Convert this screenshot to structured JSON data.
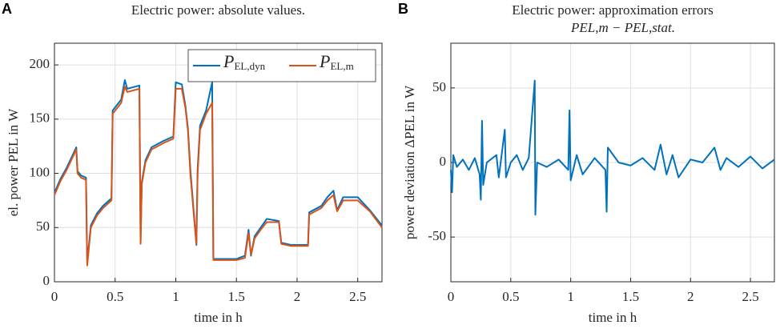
{
  "chart_data": [
    {
      "type": "line",
      "panel_label": "A",
      "title": "Electric power: absolute values.",
      "xlabel": "time in h",
      "ylabel": "el. power PEL in W",
      "xlim": [
        0,
        2.7
      ],
      "ylim": [
        0,
        220
      ],
      "xticks": [
        0,
        0.5,
        1,
        1.5,
        2,
        2.5
      ],
      "yticks": [
        0,
        50,
        100,
        150,
        200
      ],
      "grid": true,
      "legend": "upper right",
      "x": [
        0,
        0.05,
        0.1,
        0.18,
        0.19,
        0.22,
        0.26,
        0.27,
        0.3,
        0.35,
        0.4,
        0.47,
        0.48,
        0.55,
        0.58,
        0.6,
        0.7,
        0.71,
        0.72,
        0.75,
        0.8,
        0.9,
        0.98,
        1.0,
        1.05,
        1.08,
        1.1,
        1.12,
        1.15,
        1.17,
        1.18,
        1.2,
        1.25,
        1.3,
        1.31,
        1.5,
        1.57,
        1.6,
        1.62,
        1.65,
        1.7,
        1.75,
        1.85,
        1.87,
        1.95,
        2.09,
        2.1,
        2.2,
        2.25,
        2.3,
        2.33,
        2.38,
        2.5,
        2.6,
        2.7
      ],
      "series": [
        {
          "name": "PEL,dyn",
          "color": "#0072bd",
          "values": [
            82,
            95,
            105,
            124,
            102,
            98,
            96,
            18,
            52,
            63,
            70,
            77,
            158,
            168,
            186,
            178,
            181,
            38,
            92,
            112,
            124,
            130,
            134,
            184,
            182,
            162,
            142,
            104,
            62,
            34,
            104,
            144,
            158,
            184,
            21,
            21,
            24,
            48,
            24,
            42,
            50,
            58,
            56,
            36,
            34,
            34,
            64,
            70,
            78,
            84,
            66,
            78,
            78,
            66,
            52
          ]
        },
        {
          "name": "PEL,m",
          "color": "#d95319",
          "values": [
            80,
            93,
            103,
            122,
            100,
            96,
            94,
            15,
            50,
            61,
            68,
            75,
            155,
            165,
            180,
            175,
            178,
            35,
            90,
            110,
            122,
            128,
            132,
            178,
            178,
            160,
            140,
            100,
            60,
            35,
            100,
            140,
            155,
            165,
            20,
            20,
            22,
            45,
            25,
            40,
            48,
            55,
            55,
            35,
            33,
            33,
            62,
            68,
            75,
            80,
            65,
            75,
            75,
            65,
            50
          ]
        }
      ]
    },
    {
      "type": "line",
      "panel_label": "B",
      "title": "Electric power: approximation errors",
      "subtitle": "PEL,m − PEL,stat.",
      "xlabel": "time in h",
      "ylabel": "power deviation ΔPEL in W",
      "xlim": [
        0,
        2.7
      ],
      "ylim": [
        -80,
        80
      ],
      "xticks": [
        0,
        0.5,
        1,
        1.5,
        2,
        2.5
      ],
      "yticks": [
        -50,
        0,
        50
      ],
      "grid": true,
      "x": [
        0,
        0.01,
        0.02,
        0.05,
        0.1,
        0.15,
        0.2,
        0.24,
        0.25,
        0.26,
        0.27,
        0.3,
        0.38,
        0.4,
        0.45,
        0.46,
        0.5,
        0.55,
        0.6,
        0.65,
        0.7,
        0.705,
        0.72,
        0.8,
        0.9,
        0.98,
        0.99,
        1.0,
        1.05,
        1.1,
        1.2,
        1.29,
        1.3,
        1.31,
        1.4,
        1.5,
        1.6,
        1.7,
        1.75,
        1.8,
        1.85,
        1.9,
        2.0,
        2.1,
        2.2,
        2.25,
        2.3,
        2.4,
        2.5,
        2.6,
        2.7
      ],
      "series": [
        {
          "name": "ΔPEL",
          "color": "#0072bd",
          "values": [
            -5,
            -20,
            5,
            -3,
            2,
            -5,
            3,
            -8,
            -25,
            28,
            -15,
            0,
            5,
            -10,
            22,
            -10,
            0,
            5,
            -5,
            3,
            55,
            -35,
            0,
            -3,
            2,
            -5,
            35,
            -12,
            5,
            -8,
            3,
            -5,
            -33,
            10,
            0,
            -2,
            3,
            -5,
            12,
            -8,
            5,
            -10,
            2,
            0,
            10,
            -5,
            3,
            -3,
            4,
            -4,
            2
          ]
        }
      ]
    }
  ]
}
